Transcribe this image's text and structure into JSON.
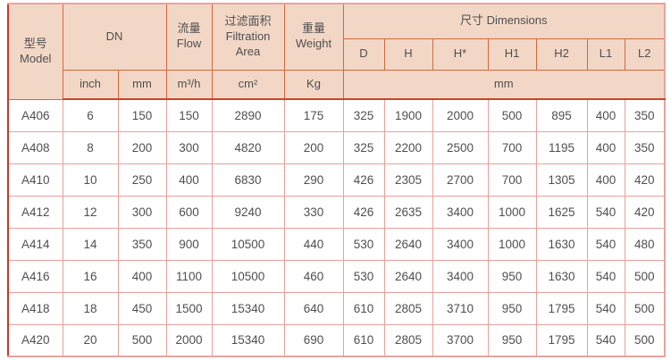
{
  "colors": {
    "header_bg": "#f3d7c6",
    "header_border": "#d2683c",
    "header_bottom_border": "#ca4426",
    "outer_left_border": "#c23b2a",
    "grid_border": "#e9a09a",
    "outer_border": "#e8a49e",
    "text": "#4f4f4f",
    "page_bg": "#ffffff"
  },
  "table": {
    "header": {
      "model": "型号\nModel",
      "dn": "DN",
      "flow": "流量\nFlow",
      "filtration": "过滤面积\nFiltration\nArea",
      "weight": "重量\nWeight",
      "dimensions": "尺寸 Dimensions",
      "dim_cols": [
        "D",
        "H",
        "H*",
        "H1",
        "H2",
        "L1",
        "L2"
      ],
      "units": {
        "inch": "inch",
        "mm": "mm",
        "flow": "m³/h",
        "area": "cm²",
        "weight": "Kg",
        "dims": "mm"
      }
    },
    "rows": [
      [
        "A406",
        "6",
        "150",
        "150",
        "2890",
        "175",
        "325",
        "1900",
        "2000",
        "500",
        "895",
        "400",
        "350"
      ],
      [
        "A408",
        "8",
        "200",
        "300",
        "4820",
        "200",
        "325",
        "2200",
        "2500",
        "700",
        "1195",
        "400",
        "350"
      ],
      [
        "A410",
        "10",
        "250",
        "400",
        "6830",
        "290",
        "426",
        "2305",
        "2700",
        "700",
        "1305",
        "400",
        "420"
      ],
      [
        "A412",
        "12",
        "300",
        "600",
        "9240",
        "330",
        "426",
        "2635",
        "3400",
        "1000",
        "1625",
        "540",
        "420"
      ],
      [
        "A414",
        "14",
        "350",
        "900",
        "10500",
        "440",
        "530",
        "2640",
        "3400",
        "1000",
        "1630",
        "540",
        "480"
      ],
      [
        "A416",
        "16",
        "400",
        "1100",
        "10500",
        "460",
        "530",
        "2640",
        "3400",
        "950",
        "1630",
        "540",
        "500"
      ],
      [
        "A418",
        "18",
        "450",
        "1500",
        "15340",
        "640",
        "610",
        "2805",
        "3710",
        "950",
        "1795",
        "540",
        "500"
      ],
      [
        "A420",
        "20",
        "500",
        "2000",
        "15340",
        "690",
        "610",
        "2805",
        "3700",
        "950",
        "1795",
        "540",
        "500"
      ]
    ]
  }
}
